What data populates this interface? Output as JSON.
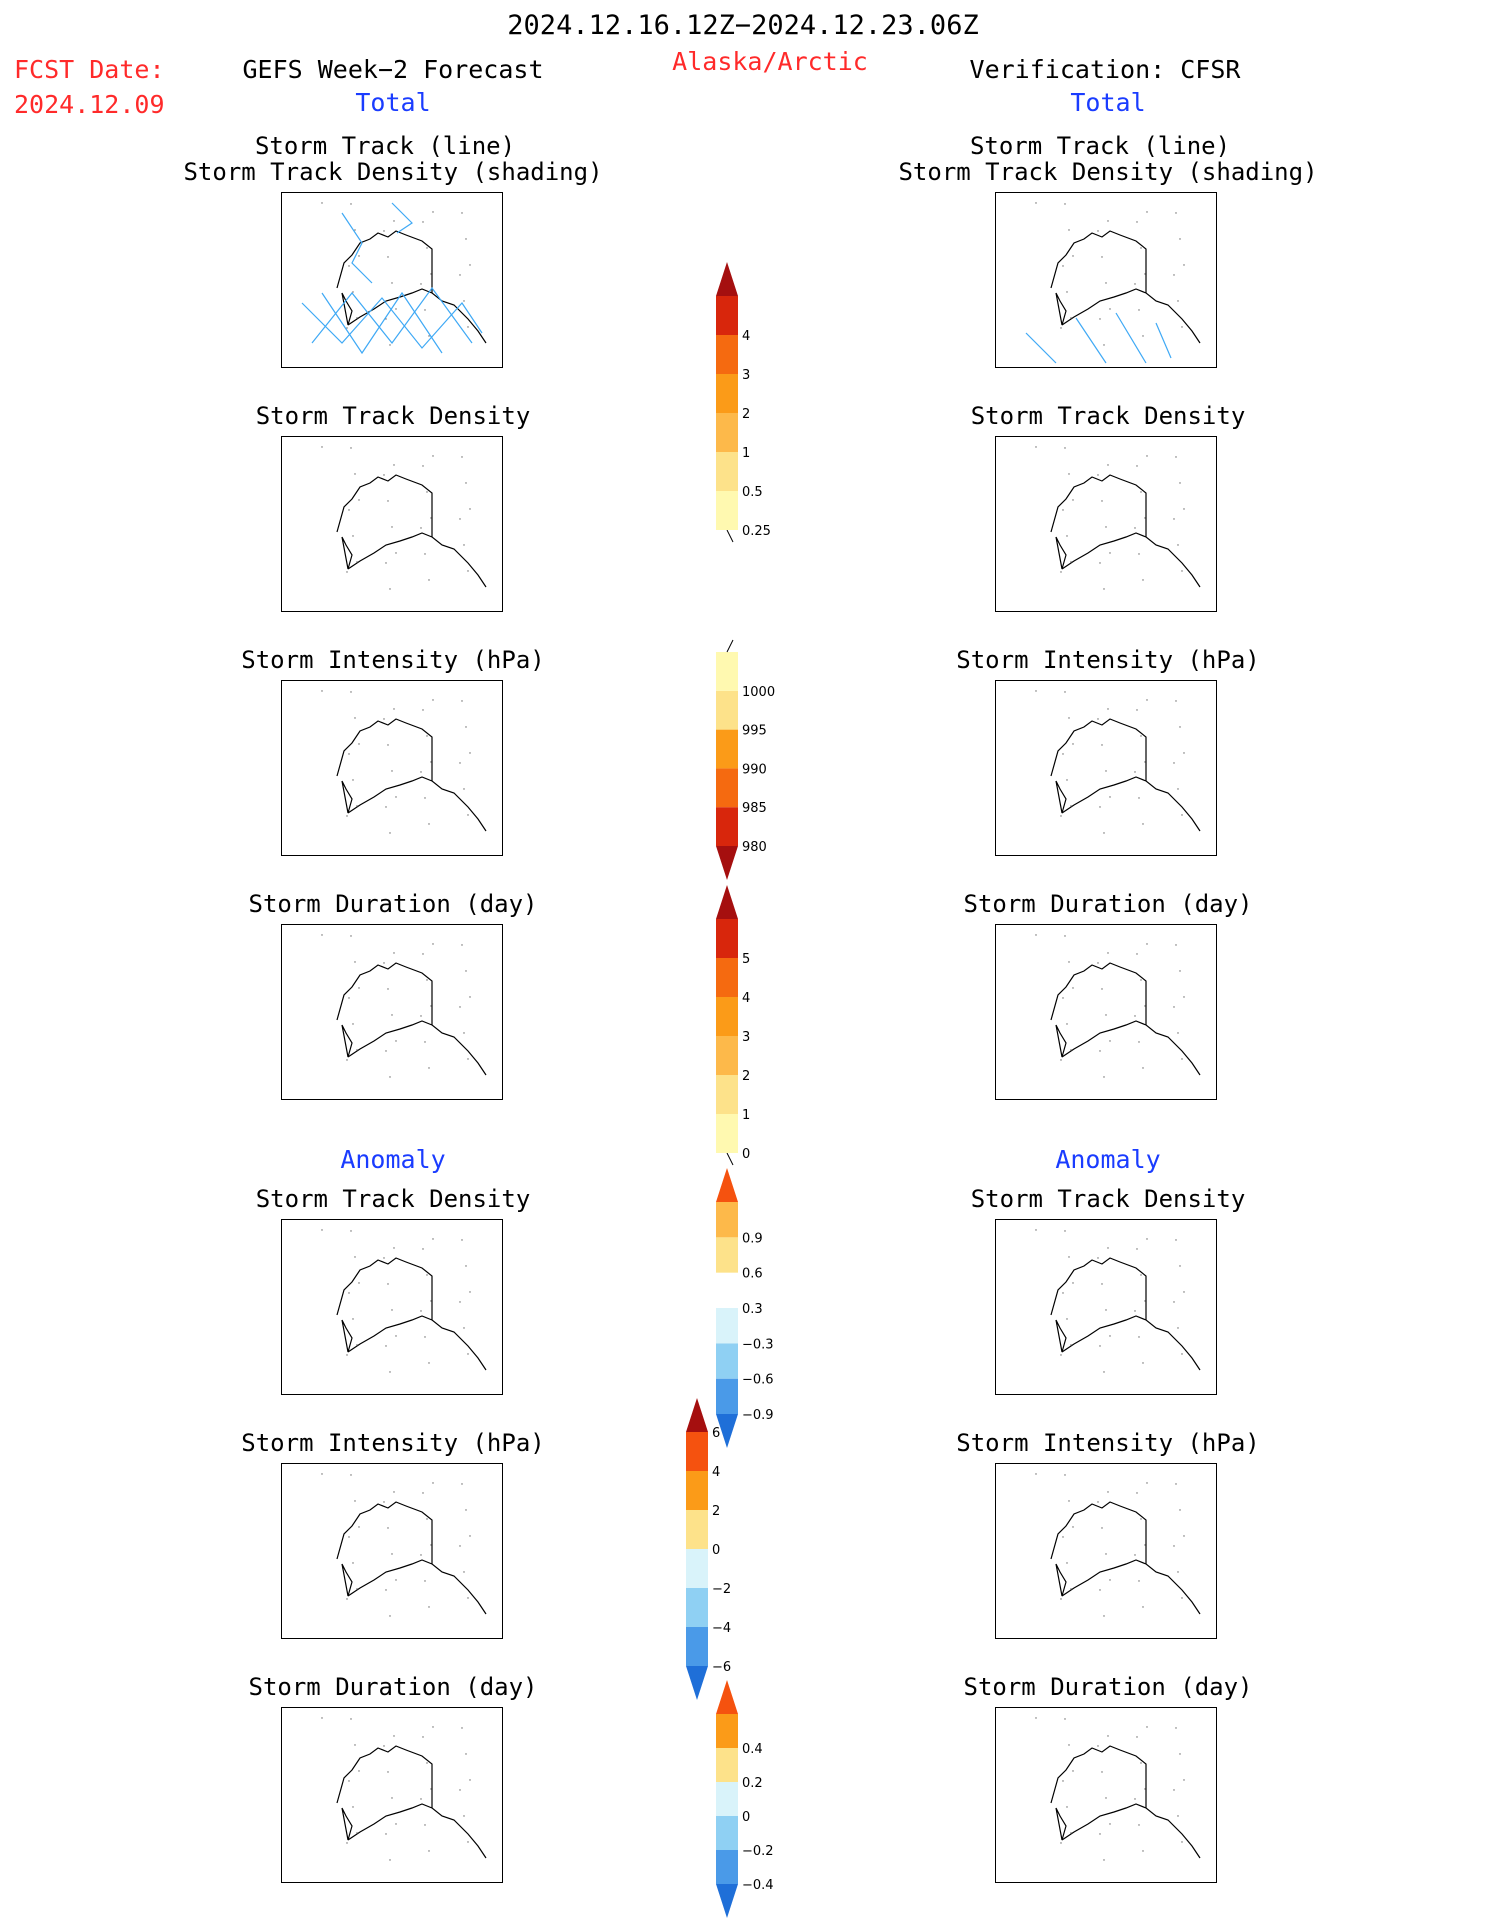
{
  "header": {
    "period": "2024.12.16.12Z−2024.12.23.06Z",
    "fcst_label": "FCST Date:",
    "fcst_date": "2024.12.09",
    "forecast_title": "GEFS Week−2 Forecast",
    "region": "Alaska/Arctic",
    "verification_title": "Verification: CFSR"
  },
  "sections": {
    "total_label": "Total",
    "anomaly_label": "Anomaly"
  },
  "panels": {
    "track_line": "Storm Track (line)",
    "track_density_shading": "Storm Track Density (shading)",
    "track_density": "Storm Track Density",
    "intensity": "Storm Intensity (hPa)",
    "duration": "Storm Duration (day)"
  },
  "colors": {
    "title_red": "#ff2a2a",
    "label_blue": "#1a3cff",
    "track_line": "#3fa9f5"
  },
  "chart_data": [
    {
      "type": "heatmap",
      "name": "total-track-density",
      "levels": [
        0.25,
        0.5,
        1,
        2,
        3,
        4
      ],
      "tick_labels": [
        "0.25",
        "0.5",
        "1",
        "2",
        "3",
        "4"
      ],
      "colors": [
        "#fff9b0",
        "#fde28a",
        "#fdb94a",
        "#fb9b18",
        "#f56a10",
        "#d8260c",
        "#a50f0f"
      ]
    },
    {
      "type": "heatmap",
      "name": "total-intensity",
      "levels": [
        980,
        985,
        990,
        995,
        1000
      ],
      "tick_labels": [
        "980",
        "985",
        "990",
        "995",
        "1000"
      ],
      "colors": [
        "#a50f0f",
        "#d8260c",
        "#f56a10",
        "#fb9b18",
        "#fde28a",
        "#fff9b0"
      ]
    },
    {
      "type": "heatmap",
      "name": "total-duration",
      "levels": [
        0,
        1,
        2,
        3,
        4,
        5
      ],
      "tick_labels": [
        "0",
        "1",
        "2",
        "3",
        "4",
        "5"
      ],
      "colors": [
        "#fff9b0",
        "#fde28a",
        "#fdb94a",
        "#fb9b18",
        "#f56a10",
        "#d8260c",
        "#a50f0f"
      ]
    },
    {
      "type": "heatmap",
      "name": "anomaly-track-density",
      "levels": [
        -0.9,
        -0.6,
        -0.3,
        0.3,
        0.6,
        0.9
      ],
      "tick_labels": [
        "−0.9",
        "−0.6",
        "−0.3",
        "0.3",
        "0.6",
        "0.9"
      ],
      "colors": [
        "#1f6fd8",
        "#4a9ae8",
        "#8fd0f3",
        "#d9f3fa",
        "#ffffff",
        "#fde28a",
        "#fdb94a",
        "#f5520f"
      ]
    },
    {
      "type": "heatmap",
      "name": "anomaly-intensity",
      "levels": [
        -6,
        -4,
        -2,
        0,
        2,
        4,
        6
      ],
      "tick_labels": [
        "−6",
        "−4",
        "−2",
        "0",
        "2",
        "4",
        "6"
      ],
      "colors": [
        "#1f6fd8",
        "#4a9ae8",
        "#8fd0f3",
        "#d9f3fa",
        "#fde28a",
        "#fb9b18",
        "#f5520f",
        "#a50f0f"
      ]
    },
    {
      "type": "heatmap",
      "name": "anomaly-duration",
      "levels": [
        -0.4,
        -0.2,
        0,
        0.2,
        0.4
      ],
      "tick_labels": [
        "−0.4",
        "−0.2",
        "0",
        "0.2",
        "0.4"
      ],
      "colors": [
        "#1f6fd8",
        "#4a9ae8",
        "#8fd0f3",
        "#d9f3fa",
        "#fde28a",
        "#fb9b18",
        "#f5520f"
      ]
    }
  ]
}
